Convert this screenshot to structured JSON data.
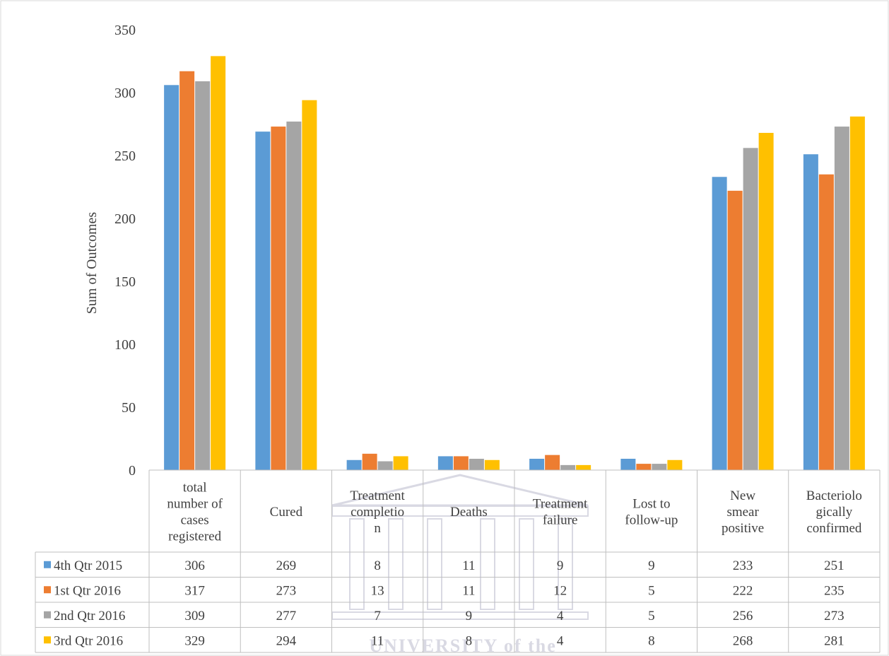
{
  "chart_data": {
    "type": "bar",
    "title": "",
    "xlabel": "",
    "ylabel": "Sum of Outcomes",
    "ylim": [
      0,
      350
    ],
    "yticks": [
      0,
      50,
      100,
      150,
      200,
      250,
      300,
      350
    ],
    "grid": false,
    "legend": "data-table-rows",
    "categories": [
      "total number of cases registered",
      "Cured",
      "Treatment completion",
      "Deaths",
      "Treatment failure",
      "Lost to follow-up",
      "New smear positive",
      "Bacteriologically confirmed"
    ],
    "category_label_lines": [
      [
        "total",
        "number of",
        "cases",
        "registered"
      ],
      [
        "Cured"
      ],
      [
        "Treatment",
        "completio",
        "n"
      ],
      [
        "Deaths"
      ],
      [
        "Treatment",
        "failure"
      ],
      [
        "Lost to",
        "follow-up"
      ],
      [
        "New",
        "smear",
        "positive"
      ],
      [
        "Bacteriolo",
        "gically",
        "confirmed"
      ]
    ],
    "series": [
      {
        "name": "4th Qtr 2015",
        "color": "#5B9BD5",
        "values": [
          306,
          269,
          8,
          11,
          9,
          9,
          233,
          251
        ]
      },
      {
        "name": "1st Qtr 2016",
        "color": "#ED7D31",
        "values": [
          317,
          273,
          13,
          11,
          12,
          5,
          222,
          235
        ]
      },
      {
        "name": "2nd Qtr 2016",
        "color": "#A5A5A5",
        "values": [
          309,
          277,
          7,
          9,
          4,
          5,
          256,
          273
        ]
      },
      {
        "name": "3rd Qtr 2016",
        "color": "#FFC000",
        "values": [
          329,
          294,
          11,
          8,
          4,
          8,
          268,
          281
        ]
      }
    ]
  },
  "watermark": {
    "text": "UNIVERSITY of the",
    "color": "#D9D9E3"
  }
}
